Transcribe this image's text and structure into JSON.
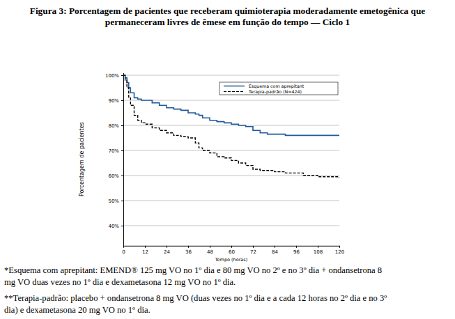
{
  "chart_data": {
    "type": "line",
    "title": [
      "Figura 3: Porcentagem de pacientes que receberam quimioterapia moderadamente emetogênica que",
      "permaneceram livres de êmese em função do tempo — Ciclo 1"
    ],
    "x_label": "Tempo (horas)",
    "y_label": "Porcentagem de pacientes",
    "x": [
      0,
      1,
      2,
      3,
      4,
      6,
      8,
      10,
      12,
      16,
      20,
      24,
      28,
      32,
      36,
      40,
      42,
      44,
      48,
      52,
      56,
      60,
      64,
      68,
      72,
      76,
      80,
      84,
      90,
      96,
      100,
      104,
      108,
      114,
      120
    ],
    "series": [
      {
        "name": "Esquema com aprepitant",
        "color": "#1f5a9a",
        "line_style": "solid",
        "values": [
          100,
          99,
          97,
          95,
          93,
          91,
          90.5,
          90,
          90,
          89,
          88,
          87,
          86.5,
          86,
          85,
          84.5,
          84,
          83,
          82,
          81.5,
          81,
          80.5,
          80,
          79.5,
          78,
          77,
          76.5,
          76.5,
          76,
          76,
          76,
          76,
          76,
          76,
          76
        ]
      },
      {
        "name": "Terapia-padrão (N=424)",
        "color": "#000000",
        "line_style": "dashed",
        "values": [
          100,
          98,
          95,
          91,
          88,
          84,
          82,
          81,
          80.5,
          79,
          78,
          77,
          76,
          75.5,
          75,
          73,
          71,
          70,
          69,
          67.5,
          67,
          66,
          65,
          64,
          62.5,
          62,
          62,
          61.5,
          61,
          61,
          60,
          60,
          59.5,
          59.5,
          59
        ]
      }
    ],
    "xlim": [
      0,
      120
    ],
    "xticks": [
      0,
      12,
      24,
      36,
      48,
      60,
      72,
      84,
      96,
      108,
      120
    ],
    "ylim": [
      32,
      101
    ],
    "yticks": [
      {
        "value": 40,
        "label": "40%"
      },
      {
        "value": 50,
        "label": "50%"
      },
      {
        "value": 60,
        "label": "60%"
      },
      {
        "value": 70,
        "label": "70%"
      },
      {
        "value": 80,
        "label": "80%"
      },
      {
        "value": 90,
        "label": "90%"
      },
      {
        "value": 100,
        "label": "100%"
      }
    ],
    "grid": true,
    "legend": "upper right",
    "annotations": [
      "*Esquema com aprepitant: EMEND® 125 mg VO no 1º dia e 80 mg VO no 2º e no 3º dia + ondansetrona 8",
      "mg VO duas vezes no 1º dia e dexametasona 12 mg VO no 1º dia.",
      "**Terapia-padrão: placebo + ondansetrona 8 mg VO (duas vezes no 1º dia e a cada 12 horas no 2º dia e no 3º",
      "dia) e dexametasona 20 mg VO no 1º dia."
    ]
  }
}
